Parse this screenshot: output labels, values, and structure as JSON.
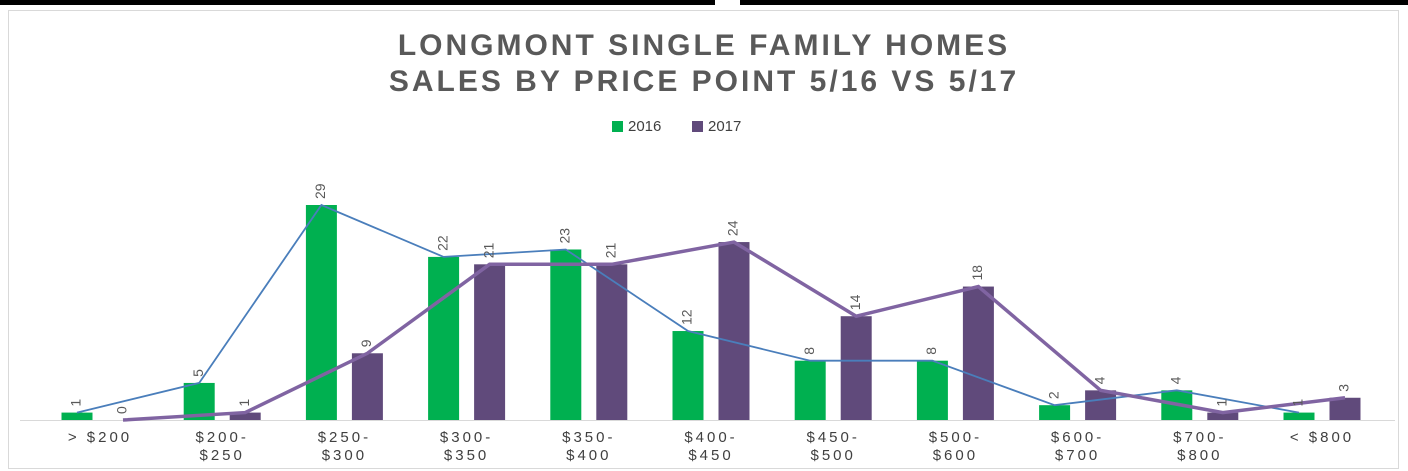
{
  "chart_data": {
    "type": "bar",
    "title": [
      "LONGMONT SINGLE FAMILY HOMES",
      "SALES BY PRICE POINT 5/16 VS 5/17"
    ],
    "categories": [
      [
        "> $200"
      ],
      [
        "$200-",
        "$250"
      ],
      [
        "$250-",
        "$300"
      ],
      [
        "$300-",
        "$350"
      ],
      [
        "$350-",
        "$400"
      ],
      [
        "$400-",
        "$450"
      ],
      [
        "$450-",
        "$500"
      ],
      [
        "$500-",
        "$600"
      ],
      [
        "$600-",
        "$700"
      ],
      [
        "$700-",
        "$800"
      ],
      [
        "< $800"
      ]
    ],
    "series": [
      {
        "name": "2016",
        "color": "#00b050",
        "line_color": "#4a7ebb",
        "values": [
          1,
          5,
          29,
          22,
          23,
          12,
          8,
          8,
          2,
          4,
          1
        ]
      },
      {
        "name": "2017",
        "color": "#604a7b",
        "line_color": "#8064a2",
        "values": [
          0,
          1,
          9,
          21,
          21,
          24,
          14,
          18,
          4,
          1,
          3
        ]
      }
    ]
  }
}
